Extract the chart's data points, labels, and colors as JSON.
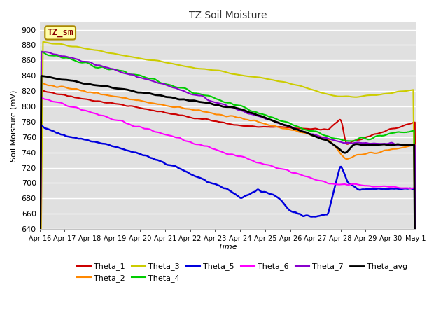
{
  "title": "TZ Soil Moisture",
  "xlabel": "Time",
  "ylabel": "Soil Moisture (mV)",
  "ylim": [
    640,
    910
  ],
  "yticks": [
    640,
    660,
    680,
    700,
    720,
    740,
    760,
    780,
    800,
    820,
    840,
    860,
    880,
    900
  ],
  "fig_bg_color": "#ffffff",
  "plot_bg_color": "#e0e0e0",
  "grid_color": "#ffffff",
  "series": {
    "Theta_1": {
      "color": "#cc0000",
      "lw": 1.5
    },
    "Theta_2": {
      "color": "#ff8800",
      "lw": 1.5
    },
    "Theta_3": {
      "color": "#cccc00",
      "lw": 1.5
    },
    "Theta_4": {
      "color": "#00cc00",
      "lw": 1.5
    },
    "Theta_5": {
      "color": "#0000dd",
      "lw": 1.8
    },
    "Theta_6": {
      "color": "#ff00ff",
      "lw": 1.5
    },
    "Theta_7": {
      "color": "#8800cc",
      "lw": 1.5
    },
    "Theta_avg": {
      "color": "#000000",
      "lw": 2.0
    }
  },
  "legend_box": {
    "text": "TZ_sm",
    "facecolor": "#ffffaa",
    "edgecolor": "#aa8800",
    "textcolor": "#880000"
  },
  "xtick_labels": [
    "Apr 16",
    "Apr 17",
    "Apr 18",
    "Apr 19",
    "Apr 20",
    "Apr 21",
    "Apr 22",
    "Apr 23",
    "Apr 24",
    "Apr 25",
    "Apr 26",
    "Apr 27",
    "Apr 28",
    "Apr 29",
    "Apr 30",
    "May 1"
  ]
}
